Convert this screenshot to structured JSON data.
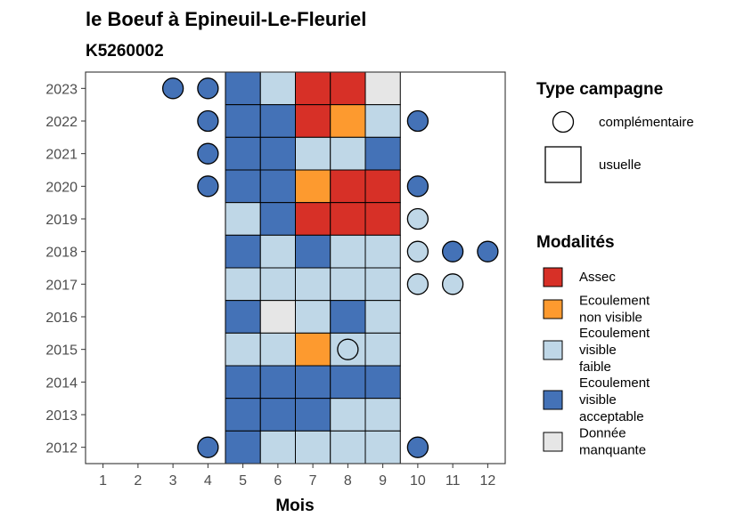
{
  "chart_data": {
    "type": "heatmap",
    "title": "le Boeuf à Epineuil-Le-Fleuriel",
    "subtitle": "K5260002",
    "xlabel": "Mois",
    "ylabel": "",
    "x_ticks": [
      1,
      2,
      3,
      4,
      5,
      6,
      7,
      8,
      9,
      10,
      11,
      12
    ],
    "y_ticks": [
      2012,
      2013,
      2014,
      2015,
      2016,
      2017,
      2018,
      2019,
      2020,
      2021,
      2022,
      2023
    ],
    "xlim": [
      0.5,
      12.5
    ],
    "ylim": [
      2011.5,
      2023.5
    ],
    "grid": false,
    "legend_position": "right",
    "modalites": [
      {
        "key": "assec",
        "lines": [
          "Assec"
        ],
        "color": "#d73027"
      },
      {
        "key": "nonvisible",
        "lines": [
          "Ecoulement",
          "non visible"
        ],
        "color": "#fd9a2f"
      },
      {
        "key": "faible",
        "lines": [
          "Ecoulement",
          "visible",
          "faible"
        ],
        "color": "#bfd7e7"
      },
      {
        "key": "acceptable",
        "lines": [
          "Ecoulement",
          "visible",
          "acceptable"
        ],
        "color": "#4472b7"
      },
      {
        "key": "manquante",
        "lines": [
          "Donnée",
          "manquante"
        ],
        "color": "#e6e6e6"
      }
    ],
    "type_campagne": {
      "title": "Type campagne",
      "items": [
        {
          "key": "complementaire",
          "label": "complémentaire",
          "shape": "circle"
        },
        {
          "key": "usuelle",
          "label": "usuelle",
          "shape": "square"
        }
      ]
    },
    "modalites_title": "Modalités",
    "usuelle": [
      {
        "year": 2023,
        "values": {
          "5": "acceptable",
          "6": "faible",
          "7": "assec",
          "8": "assec",
          "9": "manquante"
        }
      },
      {
        "year": 2022,
        "values": {
          "5": "acceptable",
          "6": "acceptable",
          "7": "assec",
          "8": "nonvisible",
          "9": "faible"
        }
      },
      {
        "year": 2021,
        "values": {
          "5": "acceptable",
          "6": "acceptable",
          "7": "faible",
          "8": "faible",
          "9": "acceptable"
        }
      },
      {
        "year": 2020,
        "values": {
          "5": "acceptable",
          "6": "acceptable",
          "7": "nonvisible",
          "8": "assec",
          "9": "assec"
        }
      },
      {
        "year": 2019,
        "values": {
          "5": "faible",
          "6": "acceptable",
          "7": "assec",
          "8": "assec",
          "9": "assec"
        }
      },
      {
        "year": 2018,
        "values": {
          "5": "acceptable",
          "6": "faible",
          "7": "acceptable",
          "8": "faible",
          "9": "faible"
        }
      },
      {
        "year": 2017,
        "values": {
          "5": "faible",
          "6": "faible",
          "7": "faible",
          "8": "faible",
          "9": "faible"
        }
      },
      {
        "year": 2016,
        "values": {
          "5": "acceptable",
          "6": "manquante",
          "7": "faible",
          "8": "acceptable",
          "9": "faible"
        }
      },
      {
        "year": 2015,
        "values": {
          "5": "faible",
          "6": "faible",
          "7": "nonvisible",
          "8": "faible",
          "9": "faible"
        }
      },
      {
        "year": 2014,
        "values": {
          "5": "acceptable",
          "6": "acceptable",
          "7": "acceptable",
          "8": "acceptable",
          "9": "acceptable"
        }
      },
      {
        "year": 2013,
        "values": {
          "5": "acceptable",
          "6": "acceptable",
          "7": "acceptable",
          "8": "faible",
          "9": "faible"
        }
      },
      {
        "year": 2012,
        "values": {
          "5": "acceptable",
          "6": "faible",
          "7": "faible",
          "8": "faible",
          "9": "faible"
        }
      }
    ],
    "complementaire": [
      {
        "year": 2023,
        "month": 3,
        "value": "acceptable"
      },
      {
        "year": 2023,
        "month": 4,
        "value": "acceptable"
      },
      {
        "year": 2022,
        "month": 4,
        "value": "acceptable"
      },
      {
        "year": 2022,
        "month": 10,
        "value": "acceptable"
      },
      {
        "year": 2021,
        "month": 4,
        "value": "acceptable"
      },
      {
        "year": 2020,
        "month": 4,
        "value": "acceptable"
      },
      {
        "year": 2020,
        "month": 10,
        "value": "acceptable"
      },
      {
        "year": 2019,
        "month": 10,
        "value": "faible"
      },
      {
        "year": 2018,
        "month": 10,
        "value": "faible"
      },
      {
        "year": 2018,
        "month": 11,
        "value": "acceptable"
      },
      {
        "year": 2018,
        "month": 12,
        "value": "acceptable"
      },
      {
        "year": 2017,
        "month": 10,
        "value": "faible"
      },
      {
        "year": 2017,
        "month": 11,
        "value": "faible"
      },
      {
        "year": 2015,
        "month": 8,
        "value": "faible"
      },
      {
        "year": 2012,
        "month": 4,
        "value": "acceptable"
      },
      {
        "year": 2012,
        "month": 10,
        "value": "acceptable"
      }
    ]
  }
}
